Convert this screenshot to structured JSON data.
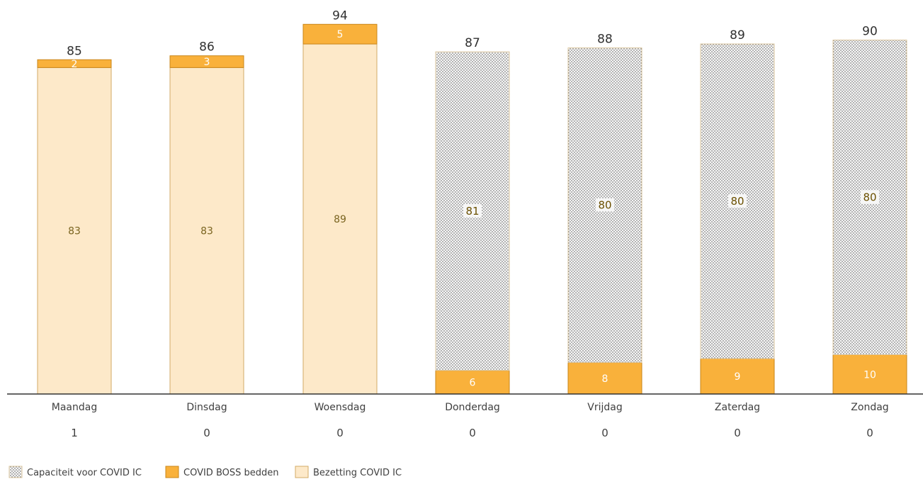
{
  "chart_data": {
    "type": "bar",
    "stacked": true,
    "categories": [
      "Maandag",
      "Dinsdag",
      "Woensdag",
      "Donderdag",
      "Vrijdag",
      "Zaterdag",
      "Zondag"
    ],
    "sub_labels": [
      "1",
      "0",
      "0",
      "0",
      "0",
      "0",
      "0"
    ],
    "totals": [
      85,
      86,
      94,
      87,
      88,
      89,
      90
    ],
    "series": [
      {
        "name": "Bezetting COVID IC",
        "key": "bezetting",
        "color": "#fde9c9",
        "values": [
          83,
          83,
          89,
          0,
          0,
          0,
          0
        ]
      },
      {
        "name": "COVID BOSS bedden",
        "key": "boss",
        "color": "#f9b13b",
        "values": [
          2,
          3,
          5,
          6,
          8,
          9,
          10
        ]
      },
      {
        "name": "Capaciteit voor COVID IC",
        "key": "capaciteit",
        "color": "#f4f4f4",
        "pattern": "dotted",
        "values": [
          0,
          0,
          0,
          81,
          80,
          80,
          80
        ]
      }
    ],
    "stack_order": {
      "Maandag": [
        "bezetting",
        "boss"
      ],
      "Dinsdag": [
        "bezetting",
        "boss"
      ],
      "Woensdag": [
        "bezetting",
        "boss"
      ],
      "Donderdag": [
        "boss",
        "capaciteit"
      ],
      "Vrijdag": [
        "boss",
        "capaciteit"
      ],
      "Zaterdag": [
        "boss",
        "capaciteit"
      ],
      "Zondag": [
        "boss",
        "capaciteit"
      ]
    },
    "ylim": [
      0,
      100
    ],
    "grid": false,
    "legend_position": "bottom-left",
    "legend": [
      {
        "name": "Capaciteit voor COVID IC",
        "key": "capaciteit"
      },
      {
        "name": "COVID BOSS bedden",
        "key": "boss"
      },
      {
        "name": "Bezetting COVID IC",
        "key": "bezetting"
      }
    ],
    "title": "",
    "xlabel": "",
    "ylabel": ""
  }
}
